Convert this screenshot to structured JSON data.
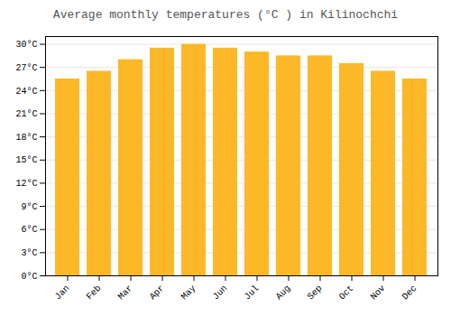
{
  "chart_data": {
    "type": "bar",
    "title": "Average monthly temperatures (°C ) in Kilinochchi",
    "categories": [
      "Jan",
      "Feb",
      "Mar",
      "Apr",
      "May",
      "Jun",
      "Jul",
      "Aug",
      "Sep",
      "Oct",
      "Nov",
      "Dec"
    ],
    "values": [
      25.5,
      26.5,
      28.0,
      29.5,
      30.0,
      29.5,
      29.0,
      28.5,
      28.5,
      27.5,
      26.5,
      25.5
    ],
    "color": "#FDB827",
    "ylim": [
      0,
      31
    ],
    "yticks": [
      {
        "value": 0,
        "label": "0°C"
      },
      {
        "value": 3,
        "label": "3°C"
      },
      {
        "value": 6,
        "label": "6°C"
      },
      {
        "value": 9,
        "label": "9°C"
      },
      {
        "value": 12,
        "label": "12°C"
      },
      {
        "value": 15,
        "label": "15°C"
      },
      {
        "value": 18,
        "label": "18°C"
      },
      {
        "value": 21,
        "label": "21°C"
      },
      {
        "value": 24,
        "label": "24°C"
      },
      {
        "value": 27,
        "label": "27°C"
      },
      {
        "value": 30,
        "label": "30°C"
      }
    ],
    "grid": true
  }
}
